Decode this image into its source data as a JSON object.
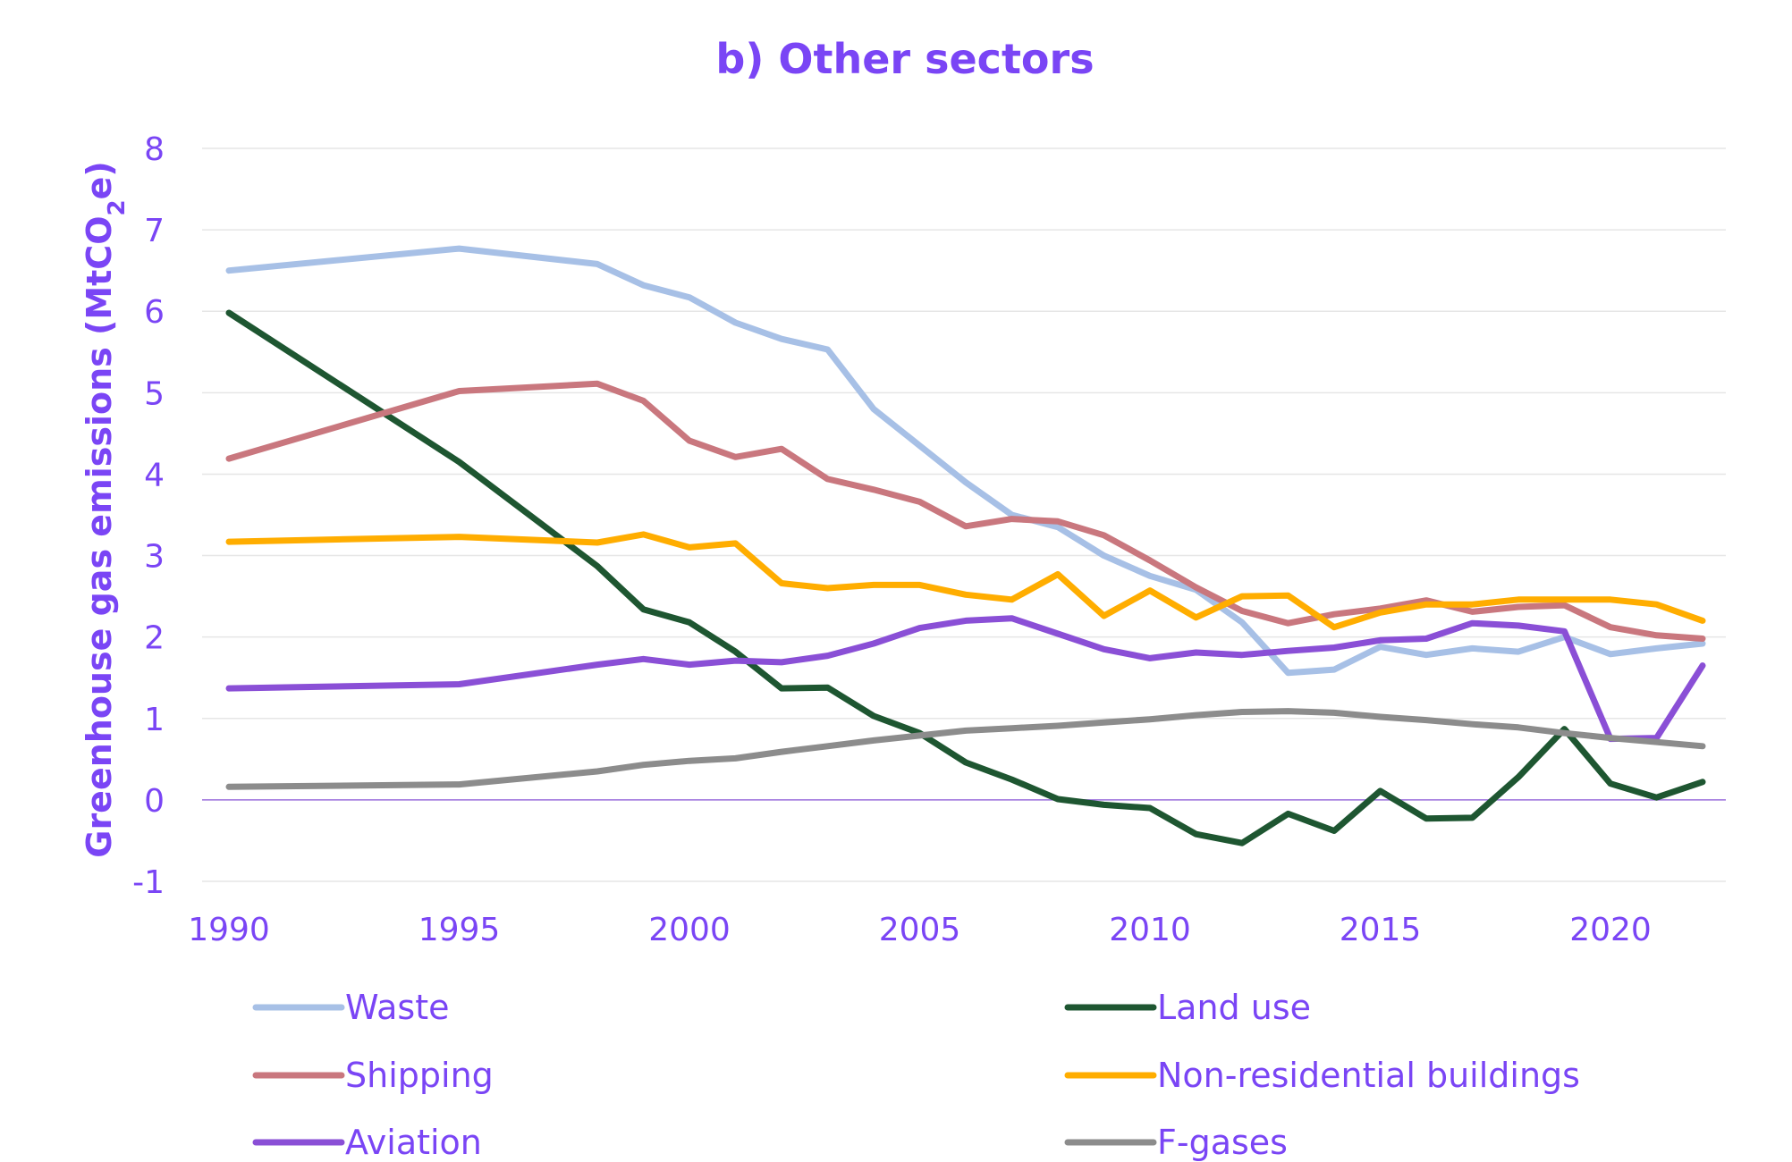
{
  "chart_data": {
    "type": "line",
    "title": "b) Other sectors",
    "ylabel_main": "Greenhouse gas emissions (MtCO",
    "ylabel_sub": "2",
    "ylabel_end": "e)",
    "xlabel": "",
    "ylim": [
      -1,
      8
    ],
    "xlim": [
      1990,
      2022
    ],
    "yticks": [
      -1,
      0,
      1,
      2,
      3,
      4,
      5,
      6,
      7,
      8
    ],
    "ytick_labels": [
      "-1",
      "0",
      "1",
      "2",
      "3",
      "4",
      "5",
      "6",
      "7",
      "8"
    ],
    "xticks": [
      1990,
      1995,
      2000,
      2005,
      2010,
      2015,
      2020
    ],
    "xtick_labels": [
      "1990",
      "1995",
      "2000",
      "2005",
      "2010",
      "2015",
      "2020"
    ],
    "grid": true,
    "legend_position": "bottom",
    "series": [
      {
        "name": "Waste",
        "color": "#a7c0e6",
        "points": [
          [
            1990,
            6.5
          ],
          [
            1995,
            6.77
          ],
          [
            1998,
            6.58
          ],
          [
            1999,
            6.32
          ],
          [
            2000,
            6.17
          ],
          [
            2001,
            5.86
          ],
          [
            2002,
            5.66
          ],
          [
            2003,
            5.53
          ],
          [
            2004,
            4.8
          ],
          [
            2005,
            4.35
          ],
          [
            2006,
            3.9
          ],
          [
            2007,
            3.5
          ],
          [
            2008,
            3.35
          ],
          [
            2009,
            3.0
          ],
          [
            2010,
            2.75
          ],
          [
            2011,
            2.58
          ],
          [
            2012,
            2.18
          ],
          [
            2013,
            1.56
          ],
          [
            2014,
            1.6
          ],
          [
            2015,
            1.88
          ],
          [
            2016,
            1.78
          ],
          [
            2017,
            1.86
          ],
          [
            2018,
            1.82
          ],
          [
            2019,
            2.0
          ],
          [
            2020,
            1.79
          ],
          [
            2021,
            1.86
          ],
          [
            2022,
            1.92
          ]
        ]
      },
      {
        "name": "Land use",
        "color": "#1e5631",
        "points": [
          [
            1990,
            5.98
          ],
          [
            1995,
            4.15
          ],
          [
            1998,
            2.87
          ],
          [
            1999,
            2.34
          ],
          [
            2000,
            2.18
          ],
          [
            2001,
            1.82
          ],
          [
            2002,
            1.37
          ],
          [
            2003,
            1.38
          ],
          [
            2004,
            1.03
          ],
          [
            2005,
            0.82
          ],
          [
            2006,
            0.46
          ],
          [
            2007,
            0.25
          ],
          [
            2008,
            0.01
          ],
          [
            2009,
            -0.06
          ],
          [
            2010,
            -0.1
          ],
          [
            2011,
            -0.42
          ],
          [
            2012,
            -0.53
          ],
          [
            2013,
            -0.17
          ],
          [
            2014,
            -0.38
          ],
          [
            2015,
            0.11
          ],
          [
            2016,
            -0.23
          ],
          [
            2017,
            -0.22
          ],
          [
            2018,
            0.28
          ],
          [
            2019,
            0.87
          ],
          [
            2020,
            0.2
          ],
          [
            2021,
            0.03
          ],
          [
            2022,
            0.22
          ]
        ]
      },
      {
        "name": "Shipping",
        "color": "#c9777e",
        "points": [
          [
            1990,
            4.19
          ],
          [
            1995,
            5.02
          ],
          [
            1998,
            5.11
          ],
          [
            1999,
            4.9
          ],
          [
            2000,
            4.41
          ],
          [
            2001,
            4.21
          ],
          [
            2002,
            4.31
          ],
          [
            2003,
            3.94
          ],
          [
            2004,
            3.81
          ],
          [
            2005,
            3.66
          ],
          [
            2006,
            3.36
          ],
          [
            2007,
            3.45
          ],
          [
            2008,
            3.42
          ],
          [
            2009,
            3.25
          ],
          [
            2010,
            2.94
          ],
          [
            2011,
            2.61
          ],
          [
            2012,
            2.32
          ],
          [
            2013,
            2.17
          ],
          [
            2014,
            2.28
          ],
          [
            2015,
            2.35
          ],
          [
            2016,
            2.45
          ],
          [
            2017,
            2.31
          ],
          [
            2018,
            2.37
          ],
          [
            2019,
            2.39
          ],
          [
            2020,
            2.12
          ],
          [
            2021,
            2.02
          ],
          [
            2022,
            1.98
          ]
        ]
      },
      {
        "name": "Non-residential buildings",
        "color": "#ffad00",
        "points": [
          [
            1990,
            3.17
          ],
          [
            1995,
            3.23
          ],
          [
            1998,
            3.16
          ],
          [
            1999,
            3.26
          ],
          [
            2000,
            3.1
          ],
          [
            2001,
            3.15
          ],
          [
            2002,
            2.66
          ],
          [
            2003,
            2.6
          ],
          [
            2004,
            2.64
          ],
          [
            2005,
            2.64
          ],
          [
            2006,
            2.52
          ],
          [
            2007,
            2.46
          ],
          [
            2008,
            2.77
          ],
          [
            2009,
            2.26
          ],
          [
            2010,
            2.57
          ],
          [
            2011,
            2.24
          ],
          [
            2012,
            2.5
          ],
          [
            2013,
            2.51
          ],
          [
            2014,
            2.12
          ],
          [
            2015,
            2.3
          ],
          [
            2016,
            2.4
          ],
          [
            2017,
            2.4
          ],
          [
            2018,
            2.46
          ],
          [
            2019,
            2.46
          ],
          [
            2020,
            2.46
          ],
          [
            2021,
            2.4
          ],
          [
            2022,
            2.2
          ]
        ]
      },
      {
        "name": "Aviation",
        "color": "#8a4fd6",
        "points": [
          [
            1990,
            1.37
          ],
          [
            1995,
            1.42
          ],
          [
            1998,
            1.66
          ],
          [
            1999,
            1.73
          ],
          [
            2000,
            1.66
          ],
          [
            2001,
            1.71
          ],
          [
            2002,
            1.69
          ],
          [
            2003,
            1.77
          ],
          [
            2004,
            1.92
          ],
          [
            2005,
            2.11
          ],
          [
            2006,
            2.2
          ],
          [
            2007,
            2.23
          ],
          [
            2008,
            2.04
          ],
          [
            2009,
            1.85
          ],
          [
            2010,
            1.74
          ],
          [
            2011,
            1.81
          ],
          [
            2012,
            1.78
          ],
          [
            2013,
            1.83
          ],
          [
            2014,
            1.87
          ],
          [
            2015,
            1.96
          ],
          [
            2016,
            1.98
          ],
          [
            2017,
            2.17
          ],
          [
            2018,
            2.14
          ],
          [
            2019,
            2.07
          ],
          [
            2020,
            0.75
          ],
          [
            2021,
            0.76
          ],
          [
            2022,
            1.65
          ]
        ]
      },
      {
        "name": "F-gases",
        "color": "#8c8c8c",
        "points": [
          [
            1990,
            0.16
          ],
          [
            1995,
            0.19
          ],
          [
            1998,
            0.35
          ],
          [
            1999,
            0.43
          ],
          [
            2000,
            0.48
          ],
          [
            2001,
            0.51
          ],
          [
            2002,
            0.59
          ],
          [
            2003,
            0.66
          ],
          [
            2004,
            0.73
          ],
          [
            2005,
            0.79
          ],
          [
            2006,
            0.85
          ],
          [
            2007,
            0.88
          ],
          [
            2008,
            0.91
          ],
          [
            2009,
            0.95
          ],
          [
            2010,
            0.99
          ],
          [
            2011,
            1.04
          ],
          [
            2012,
            1.08
          ],
          [
            2013,
            1.09
          ],
          [
            2014,
            1.07
          ],
          [
            2015,
            1.02
          ],
          [
            2016,
            0.98
          ],
          [
            2017,
            0.93
          ],
          [
            2018,
            0.89
          ],
          [
            2019,
            0.82
          ],
          [
            2020,
            0.76
          ],
          [
            2021,
            0.71
          ],
          [
            2022,
            0.66
          ]
        ]
      }
    ]
  }
}
